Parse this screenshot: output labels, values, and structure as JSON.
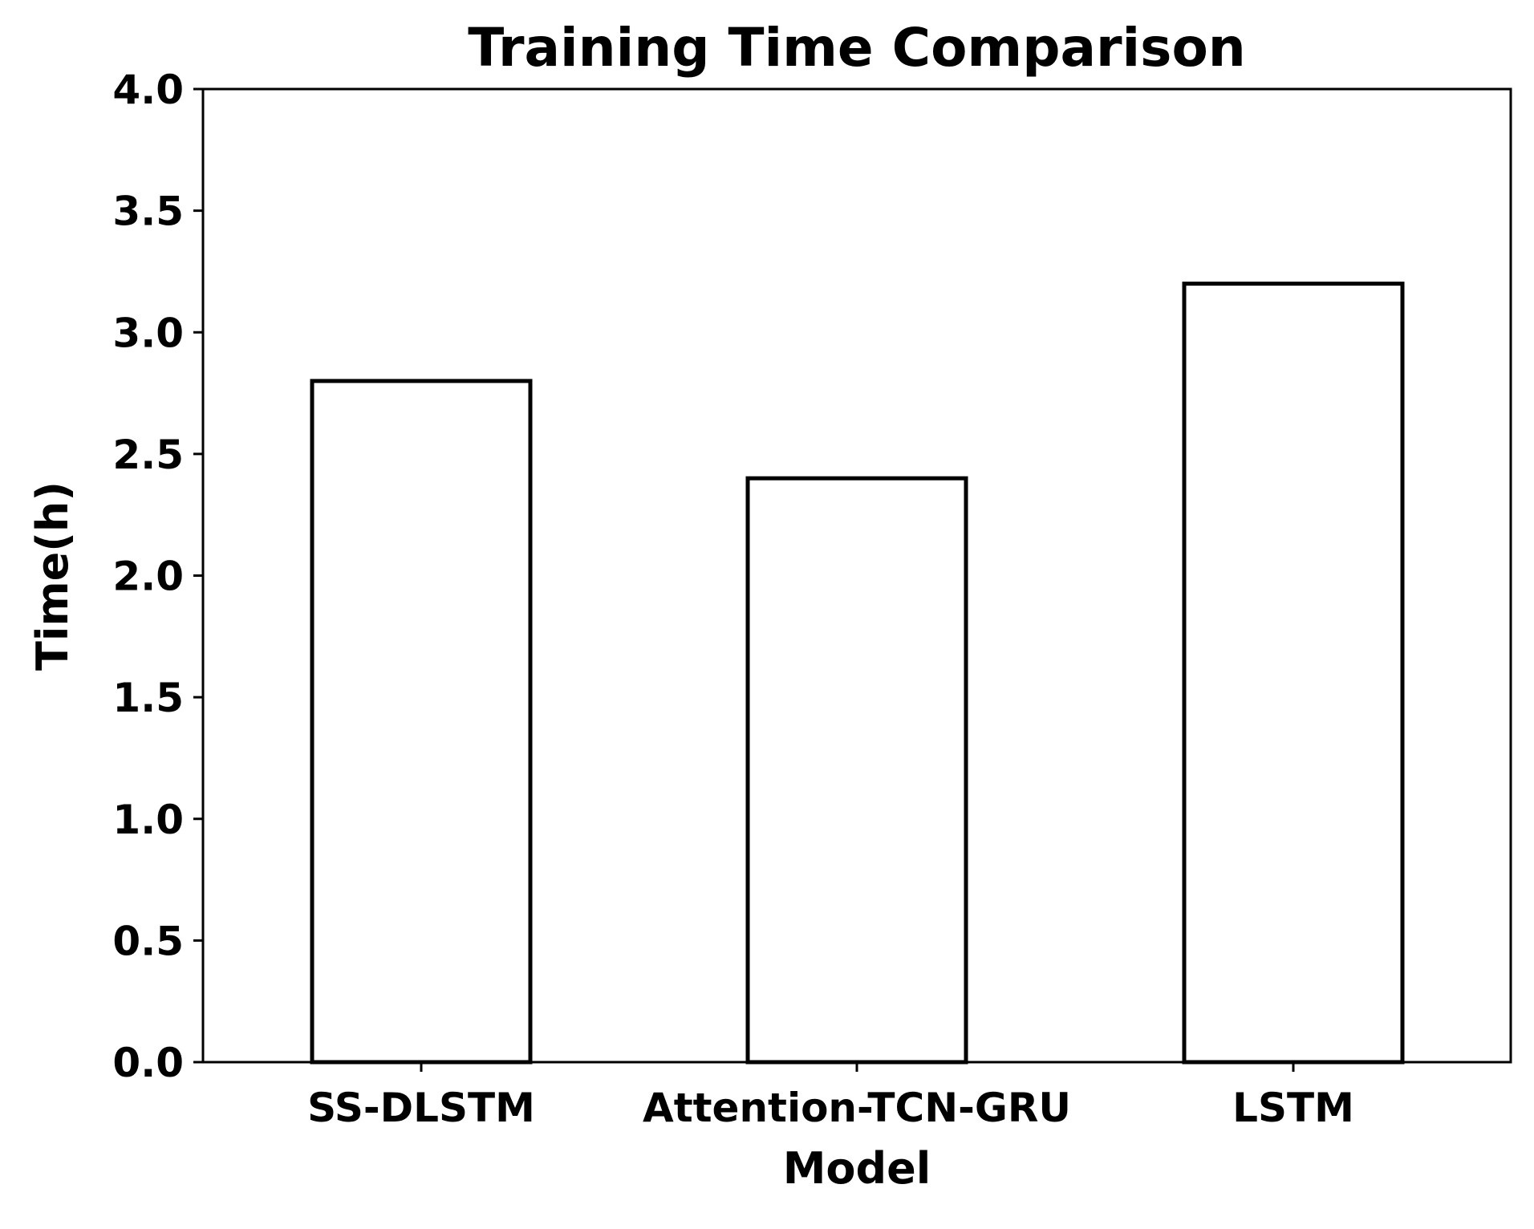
{
  "chart_data": {
    "type": "bar",
    "title": "Training Time Comparison",
    "xlabel": "Model",
    "ylabel": "Time(h)",
    "categories": [
      "SS-DLSTM",
      "Attention-TCN-GRU",
      "LSTM"
    ],
    "values": [
      2.8,
      2.4,
      3.2
    ],
    "ylim": [
      0,
      4.0
    ],
    "yticks": [
      0.0,
      0.5,
      1.0,
      1.5,
      2.0,
      2.5,
      3.0,
      3.5,
      4.0
    ],
    "ytick_labels": [
      "0.0",
      "0.5",
      "1.0",
      "1.5",
      "2.0",
      "2.5",
      "3.0",
      "3.5",
      "4.0"
    ],
    "grid": false,
    "legend": "none",
    "bar_fill_color": "#ffffff",
    "bar_edge_color": "#000000"
  }
}
